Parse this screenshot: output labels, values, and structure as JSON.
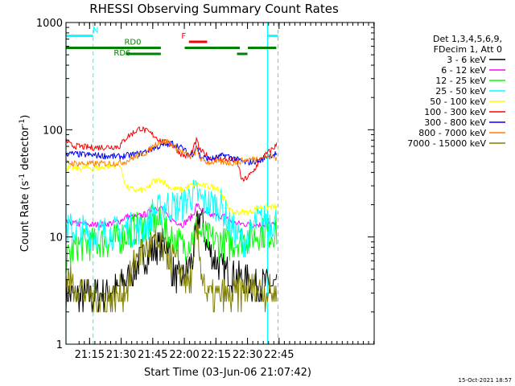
{
  "chart_data": {
    "type": "line",
    "title": "RHESSI Observing Summary Count Rates",
    "xlabel": "Start Time (03-Jun-06 21:07:42)",
    "ylabel_main": "Count Rate (s",
    "ylabel_sup1": "-1",
    "ylabel_mid": " detector",
    "ylabel_sup2": "-1",
    "ylabel_end": ")",
    "footer": "15-Oct-2021 18:57",
    "xlim": [
      487.7,
      1366
    ],
    "ylim": [
      1,
      1000
    ],
    "yscale": "log",
    "x_ticks": [
      {
        "v": 555,
        "label": "21:15"
      },
      {
        "v": 645,
        "label": "21:30"
      },
      {
        "v": 735,
        "label": "21:45"
      },
      {
        "v": 825,
        "label": "22:00"
      },
      {
        "v": 915,
        "label": "22:15"
      },
      {
        "v": 1005,
        "label": "22:30"
      },
      {
        "v": 1095,
        "label": "22:45"
      }
    ],
    "y_ticks": [
      {
        "v": 1,
        "label": "1"
      },
      {
        "v": 10,
        "label": "10"
      },
      {
        "v": 100,
        "label": "100"
      },
      {
        "v": 1000,
        "label": "1000"
      }
    ],
    "legend_header": [
      "Det 1,3,4,5,6,9,",
      "FDecim 1, Att 0"
    ],
    "legend_placement": "right-outside",
    "annotations": [
      {
        "label": "N",
        "color": "#00ffff",
        "spans": [
          [
            487.7,
            565
          ],
          [
            1062,
            1092
          ]
        ],
        "y": 750,
        "label_x": 572
      },
      {
        "label": "RD0",
        "color": "#008000",
        "spans": [
          [
            487.7,
            758
          ],
          [
            826,
            983
          ],
          [
            1006,
            1087
          ]
        ],
        "y": 580,
        "label_x": 678
      },
      {
        "label": "RD6",
        "color": "#008000",
        "spans": [
          [
            658,
            758
          ],
          [
            975,
            1005
          ]
        ],
        "y": 510,
        "label_x": 648
      },
      {
        "label": "F",
        "color": "#ff0000",
        "spans": [
          [
            838,
            890
          ]
        ],
        "y": 660,
        "label_x": 823
      }
    ],
    "vlines_solid": [
      487.7,
      1062
    ],
    "vlines_dashed": [
      565,
      1092
    ],
    "series": [
      {
        "name": "3 - 6 keV",
        "color": "#000000",
        "x": [
          487.7,
          560,
          640,
          690,
          735,
          762,
          776,
          790,
          805,
          820,
          840,
          850,
          860,
          870,
          890,
          930,
          960,
          990,
          1040,
          1090
        ],
        "y": [
          2.8,
          2.8,
          3.3,
          5.5,
          7.5,
          8.5,
          8.8,
          5.0,
          4.0,
          4.2,
          5.5,
          6.5,
          12,
          17,
          8,
          5,
          4.5,
          4,
          3.5,
          3.5
        ]
      },
      {
        "name": "6 - 12 keV",
        "color": "#ff00ff",
        "x": [
          487.7,
          560,
          580,
          620,
          640,
          660,
          690,
          720,
          735,
          760,
          780,
          800,
          820,
          840,
          850,
          860,
          890,
          945,
          960,
          1020,
          1040,
          1090
        ],
        "y": [
          13.5,
          13,
          13,
          13.5,
          14,
          15.5,
          15.5,
          16.5,
          19,
          18.5,
          15,
          14,
          13,
          15,
          16,
          20,
          16,
          15.5,
          13.5,
          13,
          13,
          13
        ]
      },
      {
        "name": "12 - 25 keV",
        "color": "#00ff00",
        "x": [
          487.7,
          520,
          560,
          600,
          640,
          665,
          690,
          720,
          740,
          760,
          780,
          800,
          820,
          840,
          860,
          880,
          920,
          960,
          970,
          1010,
          1020,
          1040,
          1090
        ],
        "y": [
          6,
          8.5,
          8.5,
          9,
          9.5,
          11,
          12,
          13,
          14.5,
          13,
          10,
          9.5,
          8,
          9,
          12,
          10,
          9,
          8.5,
          9,
          10,
          10,
          11,
          11
        ]
      },
      {
        "name": "25 - 50 keV",
        "color": "#00ffff",
        "x": [
          487.7,
          560,
          640,
          660,
          690,
          720,
          735,
          760,
          770,
          800,
          820,
          840,
          860,
          880,
          930,
          960,
          990,
          1010,
          1030,
          1040,
          1090
        ],
        "y": [
          12,
          11,
          11,
          12,
          11.5,
          12.5,
          17,
          18,
          20,
          19,
          20,
          24,
          25,
          21,
          19.5,
          12,
          9,
          10,
          14,
          14,
          14
        ]
      },
      {
        "name": "50 - 100 keV",
        "color": "#ffff00",
        "x": [
          487.7,
          560,
          580,
          620,
          640,
          660,
          690,
          720,
          735,
          760,
          790,
          820,
          840,
          860,
          880,
          920,
          960,
          980,
          1010,
          1030,
          1040,
          1090
        ],
        "y": [
          44,
          44,
          44,
          46,
          48,
          29,
          27,
          28,
          33,
          34,
          28,
          27.5,
          30,
          31,
          30,
          29,
          17,
          17,
          17,
          18.5,
          19,
          19
        ]
      },
      {
        "name": "100 - 300 keV",
        "color": "#ff0000",
        "x": [
          487.7,
          500,
          520,
          560,
          640,
          660,
          700,
          740,
          760,
          790,
          820,
          840,
          850,
          860,
          870,
          900,
          960,
          975,
          990,
          1000,
          1020,
          1040,
          1090
        ],
        "y": [
          80,
          72,
          70,
          68,
          70,
          85,
          104,
          88,
          78,
          72,
          58,
          56,
          66,
          80,
          64,
          54,
          52,
          52,
          33,
          35,
          40,
          52,
          73
        ]
      },
      {
        "name": "300 - 800 keV",
        "color": "#0000ff",
        "x": [
          487.7,
          560,
          640,
          700,
          740,
          790,
          820,
          840,
          850,
          860,
          870,
          900,
          940,
          960,
          1000,
          1030,
          1040,
          1060,
          1090
        ],
        "y": [
          60,
          58,
          56,
          60,
          68,
          75,
          67,
          58,
          60,
          72,
          56,
          53,
          58,
          55,
          49,
          51,
          51,
          57,
          60
        ]
      },
      {
        "name": "800 - 7000 keV",
        "color": "#ff8000",
        "x": [
          487.7,
          560,
          640,
          660,
          680,
          720,
          735,
          750,
          760,
          780,
          790,
          800,
          820,
          840,
          850,
          860,
          870,
          890,
          930,
          960,
          1000,
          1030,
          1040,
          1060,
          1090
        ],
        "y": [
          49,
          48,
          49,
          51,
          55,
          62,
          70,
          76,
          78,
          77,
          73,
          68,
          62,
          56,
          57,
          66,
          54,
          50,
          50,
          49,
          52,
          54,
          55,
          56,
          55
        ]
      },
      {
        "name": "7000 - 15000 keV",
        "color": "#808000",
        "x": [
          487.7,
          520,
          560,
          620,
          660,
          690,
          720,
          735,
          760,
          770,
          790,
          820,
          840,
          850,
          860,
          870,
          890,
          960,
          1000,
          1040,
          1090
        ],
        "y": [
          4,
          3.5,
          2.8,
          2.6,
          3.3,
          6.5,
          8,
          8.5,
          7.8,
          7,
          6.5,
          4.5,
          3.5,
          4.5,
          12,
          6,
          2.8,
          2.8,
          3.3,
          3.3,
          3
        ]
      }
    ]
  }
}
